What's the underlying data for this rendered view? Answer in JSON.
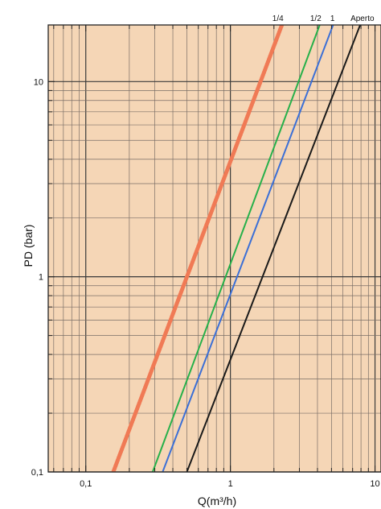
{
  "chart_data": {
    "type": "line",
    "xlabel": "Q(m³/h)",
    "ylabel": "PD (bar)",
    "xscale": "log",
    "yscale": "log",
    "xlim": [
      0.055,
      11
    ],
    "ylim": [
      0.1,
      19.5
    ],
    "x_ticks": [
      {
        "value": 0.1,
        "label": "0,1"
      },
      {
        "value": 1,
        "label": "1"
      },
      {
        "value": 10,
        "label": "10"
      }
    ],
    "y_ticks": [
      {
        "value": 0.1,
        "label": "0,1"
      },
      {
        "value": 1,
        "label": "1"
      },
      {
        "value": 10,
        "label": "10"
      }
    ],
    "grid": true,
    "series": [
      {
        "name": "1/4",
        "color": "#f07a55",
        "style": "dotted",
        "points": [
          [
            0.155,
            0.1
          ],
          [
            2.3,
            20
          ]
        ]
      },
      {
        "name": "1/2",
        "color": "#26b04a",
        "style": "solid",
        "points": [
          [
            0.29,
            0.1
          ],
          [
            4.2,
            20
          ]
        ]
      },
      {
        "name": "1",
        "color": "#3b6fd6",
        "style": "solid",
        "points": [
          [
            0.34,
            0.1
          ],
          [
            5.2,
            20
          ]
        ]
      },
      {
        "name": "Aperto",
        "color": "#1a1a1a",
        "style": "solid",
        "points": [
          [
            0.5,
            0.1
          ],
          [
            8,
            20
          ]
        ]
      }
    ]
  }
}
